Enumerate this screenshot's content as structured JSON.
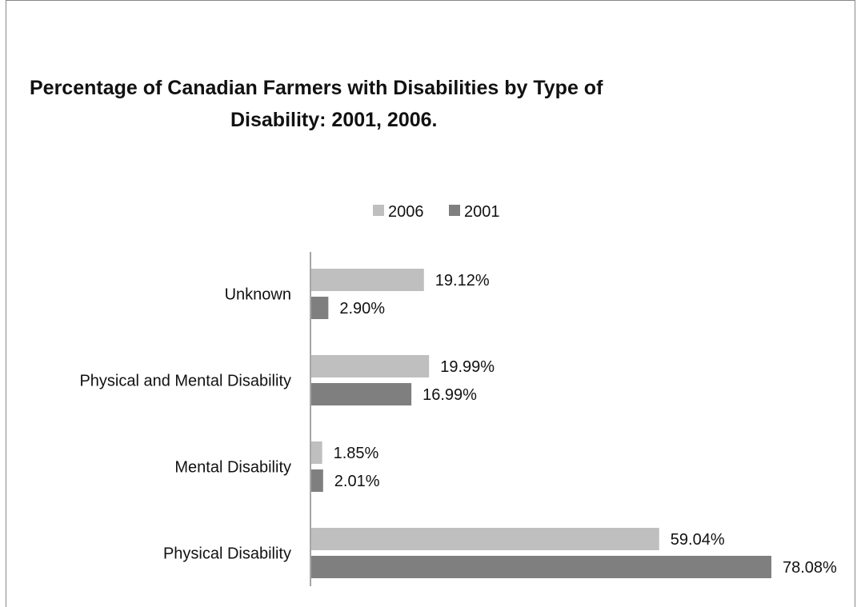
{
  "chart_data": {
    "type": "bar",
    "orientation": "horizontal",
    "title_lines": [
      "Percentage of Canadian Farmers with Disabilities by Type of",
      "Disability:  2001, 2006."
    ],
    "categories": [
      "Unknown",
      "Physical and Mental Disability",
      "Mental Disability",
      "Physical Disability"
    ],
    "series": [
      {
        "name": "2006",
        "color": "#bfbfbf",
        "values": [
          19.12,
          19.99,
          1.85,
          59.04
        ],
        "labels": [
          "19.12%",
          "19.99%",
          "1.85%",
          "59.04%"
        ]
      },
      {
        "name": "2001",
        "color": "#7f7f7f",
        "values": [
          2.9,
          16.99,
          2.01,
          78.08
        ],
        "labels": [
          "2.90%",
          "16.99%",
          "2.01%",
          "78.08%"
        ]
      }
    ],
    "legend_position": "top-center",
    "xlim": [
      0,
      78.08
    ],
    "grid": false
  }
}
